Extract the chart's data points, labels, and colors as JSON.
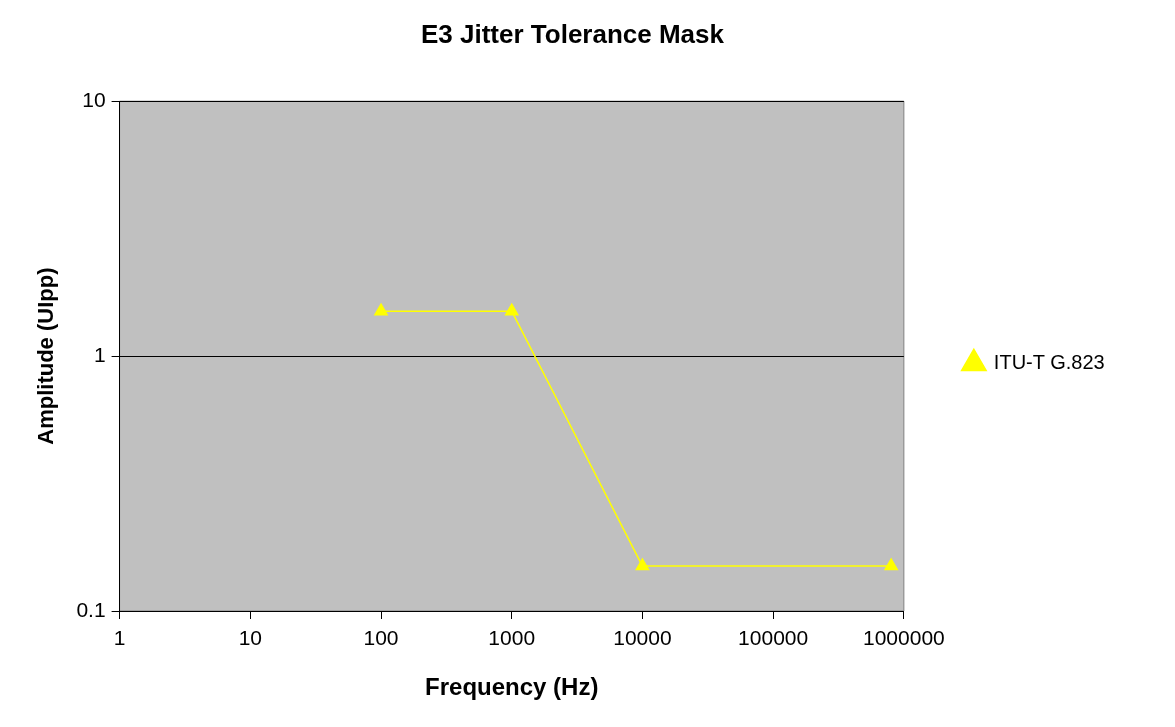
{
  "chart_data": {
    "type": "line",
    "title": "E3 Jitter Tolerance Mask",
    "xlabel": "Frequency (Hz)",
    "ylabel": "Amplitude (UIpp)",
    "log": "xy",
    "xlim": [
      1,
      1000000
    ],
    "xticks": [
      1,
      10,
      100,
      1000,
      10000,
      100000,
      1000000
    ],
    "ylim": [
      0.1,
      10
    ],
    "yticks": [
      0.1,
      1,
      10
    ],
    "grid": "y",
    "legend": "right",
    "marker": "triangle",
    "line_style": "solid",
    "series": [
      {
        "name": "ITU-T G.823",
        "color": "#ffff00",
        "x": [
          100,
          1000,
          10000,
          800000
        ],
        "values": [
          1.5,
          1.5,
          0.15,
          0.15
        ]
      }
    ]
  }
}
